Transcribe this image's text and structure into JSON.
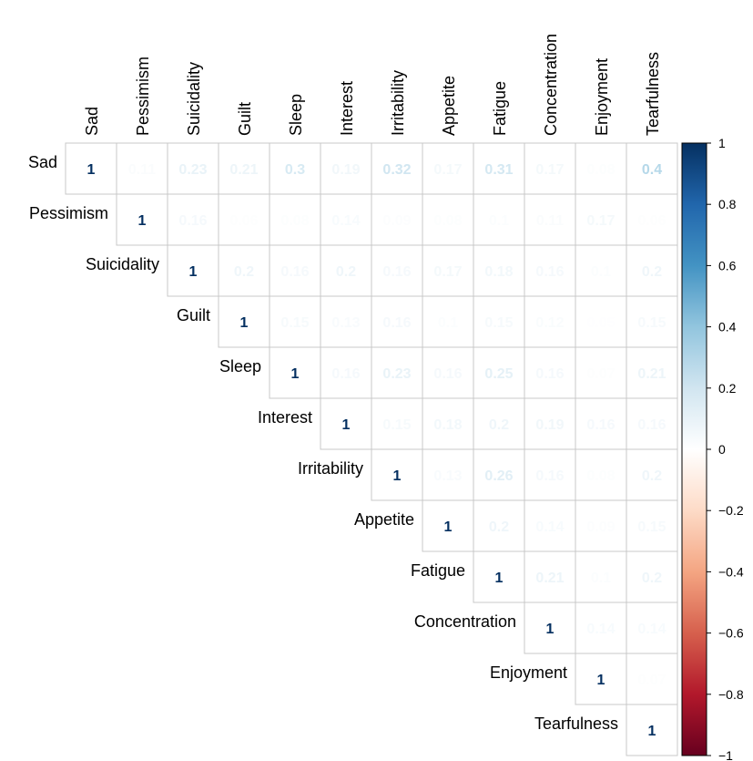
{
  "chart_data": {
    "type": "heatmap",
    "subtype": "upper-triangular correlation matrix",
    "variables": [
      "Sad",
      "Pessimism",
      "Suicidality",
      "Guilt",
      "Sleep",
      "Interest",
      "Irritability",
      "Appetite",
      "Fatigue",
      "Concentration",
      "Enjoyment",
      "Tearfulness"
    ],
    "matrix": [
      [
        "1",
        "0.11",
        "0.23",
        "0.21",
        "0.3",
        "0.19",
        "0.32",
        "0.17",
        "0.31",
        "0.17",
        "0.08",
        "0.4"
      ],
      [
        null,
        "1",
        "0.16",
        "0.06",
        "0.08",
        "0.14",
        "0.09",
        "0.08",
        "0.1",
        "0.11",
        "0.17",
        "0.06"
      ],
      [
        null,
        null,
        "1",
        "0.2",
        "0.16",
        "0.2",
        "0.16",
        "0.17",
        "0.18",
        "0.16",
        "0.1",
        "0.2"
      ],
      [
        null,
        null,
        null,
        "1",
        "0.15",
        "0.13",
        "0.16",
        "0.1",
        "0.15",
        "0.12",
        "0.05",
        "0.15"
      ],
      [
        null,
        null,
        null,
        null,
        "1",
        "0.16",
        "0.23",
        "0.16",
        "0.25",
        "0.16",
        "0.07",
        "0.21"
      ],
      [
        null,
        null,
        null,
        null,
        null,
        "1",
        "0.15",
        "0.18",
        "0.2",
        "0.19",
        "0.16",
        "0.16"
      ],
      [
        null,
        null,
        null,
        null,
        null,
        null,
        "1",
        "0.13",
        "0.26",
        "0.16",
        "0.08",
        "0.2"
      ],
      [
        null,
        null,
        null,
        null,
        null,
        null,
        null,
        "1",
        "0.2",
        "0.14",
        "0.09",
        "0.15"
      ],
      [
        null,
        null,
        null,
        null,
        null,
        null,
        null,
        null,
        "1",
        "0.21",
        "0.1",
        "0.2"
      ],
      [
        null,
        null,
        null,
        null,
        null,
        null,
        null,
        null,
        null,
        "1",
        "0.14",
        "0.14"
      ],
      [
        null,
        null,
        null,
        null,
        null,
        null,
        null,
        null,
        null,
        null,
        "1",
        "0.07"
      ],
      [
        null,
        null,
        null,
        null,
        null,
        null,
        null,
        null,
        null,
        null,
        null,
        "1"
      ]
    ],
    "colorbar": {
      "range": [
        -1,
        1
      ],
      "ticks": [
        "1",
        "0.8",
        "0.6",
        "0.4",
        "0.2",
        "0",
        "−0.2",
        "−0.4",
        "−0.6",
        "−0.8",
        "−1"
      ],
      "colors": [
        "#053061",
        "#2166ac",
        "#4393c3",
        "#92c5de",
        "#d1e5f0",
        "#ffffff",
        "#fddbc7",
        "#f4a582",
        "#d6604d",
        "#b2182b",
        "#67001f"
      ]
    },
    "grid_color": "#c8c8c8"
  }
}
